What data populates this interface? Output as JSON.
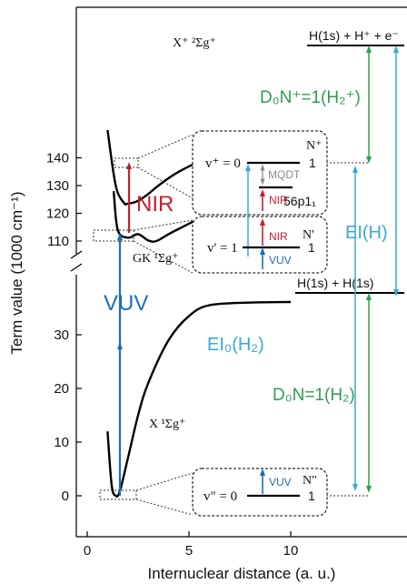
{
  "chart_data": {
    "type": "line",
    "xlabel": "Internuclear distance (a. u.)",
    "ylabel": "Term value (1000 cm⁻¹)",
    "xlim": [
      -0.5,
      14.5
    ],
    "x_ticks": [
      "0",
      "5",
      "10"
    ],
    "y_ticks_lower": [
      "0",
      "10",
      "20",
      "30"
    ],
    "y_ticks_upper": [
      "110",
      "120",
      "130",
      "140"
    ],
    "series": [
      {
        "name": "X ¹Σg⁺",
        "x": [
          1.0,
          1.2,
          1.4,
          1.6,
          2.0,
          2.5,
          3.0,
          4.0,
          5.0,
          6.0,
          8.0,
          10.0
        ],
        "y": [
          12,
          2,
          0,
          0.8,
          7,
          15,
          21,
          29,
          33.5,
          35.5,
          36,
          36.1
        ]
      },
      {
        "name": "GK ¹Σg⁺",
        "x": [
          1.3,
          1.5,
          2.0,
          2.5,
          3.0,
          3.4,
          4.0,
          4.8,
          5.2
        ],
        "y": [
          128,
          114,
          111.2,
          112.5,
          110.2,
          110,
          112.5,
          115.5,
          117
        ]
      },
      {
        "name": "X⁺ ²Σg⁺",
        "x": [
          1.0,
          1.4,
          1.8,
          2.0,
          2.5,
          3.0,
          3.5,
          4.5,
          6.0,
          8.0,
          10.0
        ],
        "y": [
          150,
          130,
          123.8,
          123.5,
          124.5,
          127,
          130,
          135,
          140,
          143,
          145.5
        ]
      }
    ]
  },
  "labels": {
    "state_x": "X ¹Σg⁺",
    "state_gk": "GK ¹Σg⁺",
    "state_ion": "X⁺ ²Σg⁺",
    "asym_upper": "H(1s) + H⁺ + e⁻",
    "asym_lower": "H(1s) + H(1s)",
    "nir": "NIR",
    "vuv": "VUV",
    "d0_ion": "D₀N⁺=1(H₂⁺)",
    "d0_neutral": "D₀N=1(H₂)",
    "ei_h": "EI(H)",
    "ei_h2": "EI₀(H₂)"
  },
  "insets": {
    "top": {
      "vplus": "v⁺ = 0",
      "nplus": "N⁺",
      "one_a": "1",
      "mqdt": "MQDT",
      "rydberg": "56p1₁",
      "nir": "NIR"
    },
    "mid": {
      "vprime": "v' = 1",
      "nprime": "N'",
      "one_b": "1",
      "vuv": "VUV"
    },
    "bottom": {
      "vdd": "v\" = 0",
      "ndd": "N\"",
      "one_c": "1",
      "vuv": "VUV"
    }
  },
  "colors": {
    "nir": "#c4202e",
    "vuv": "#1a6fb5",
    "ei": "#3aa8d8",
    "dzero": "#2e9e4f",
    "mqdt": "#8a8a8a",
    "curve": "#000000"
  }
}
